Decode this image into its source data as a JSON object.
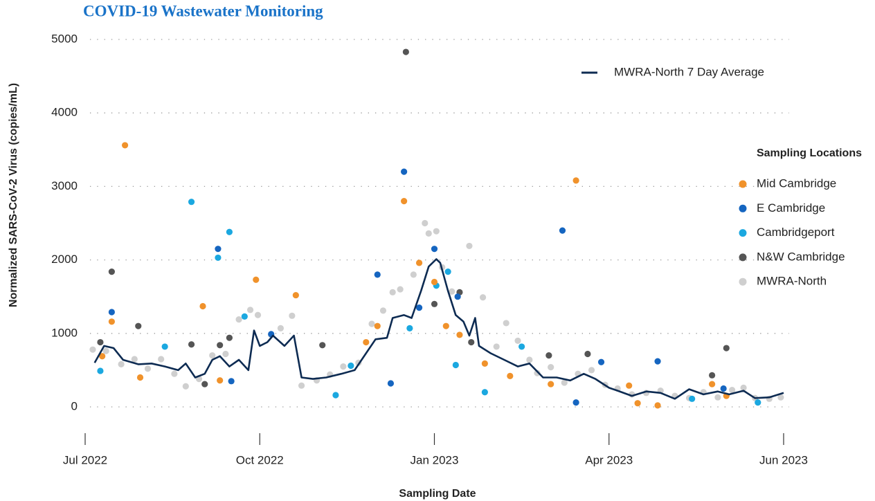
{
  "chart_data": {
    "type": "scatter",
    "title": "COVID-19 Wastewater Monitoring",
    "xlabel": "Sampling Date",
    "ylabel": "Normalized SARS-CoV-2 Virus (copies/mL)",
    "legend_title": "Sampling Locations",
    "ylim": [
      0,
      5000
    ],
    "yticks": [
      0,
      1000,
      2000,
      3000,
      4000,
      5000
    ],
    "xlim": [
      "2022-07-01",
      "2023-06-01"
    ],
    "xticks": [
      {
        "value": "2022-07-01",
        "label": "Jul 2022"
      },
      {
        "value": "2022-10-01",
        "label": "Oct 2022"
      },
      {
        "value": "2023-01-01",
        "label": "Jan 2023"
      },
      {
        "value": "2023-04-01",
        "label": "Apr 2023"
      },
      {
        "value": "2023-06-01",
        "label": "Jun 2023"
      }
    ],
    "grid": true,
    "legend": "right",
    "series": [
      {
        "name": "Mid Cambridge",
        "color": "#f0922b",
        "x": [
          "2022-07-10",
          "2022-07-15",
          "2022-07-22",
          "2022-07-30",
          "2022-09-01",
          "2022-09-10",
          "2022-09-29",
          "2022-10-20",
          "2022-11-26",
          "2022-12-02",
          "2022-12-16",
          "2022-12-24",
          "2023-01-01",
          "2023-01-07",
          "2023-01-14",
          "2023-01-27",
          "2023-02-09",
          "2023-03-02",
          "2023-03-15",
          "2023-04-08",
          "2023-04-11",
          "2023-04-18",
          "2023-05-07",
          "2023-05-12"
        ],
        "values": [
          690,
          1160,
          3560,
          400,
          1370,
          360,
          1730,
          1520,
          880,
          1100,
          2800,
          1960,
          1700,
          1100,
          980,
          590,
          420,
          310,
          3080,
          290,
          50,
          20,
          310,
          150
        ]
      },
      {
        "name": "E Cambridge",
        "color": "#1565c0",
        "x": [
          "2022-07-15",
          "2022-09-09",
          "2022-09-16",
          "2022-10-07",
          "2022-12-02",
          "2022-12-09",
          "2022-12-16",
          "2022-12-24",
          "2023-01-01",
          "2023-01-13",
          "2023-03-08",
          "2023-03-15",
          "2023-03-28",
          "2023-04-18",
          "2023-05-11"
        ],
        "values": [
          1290,
          2150,
          350,
          990,
          1800,
          320,
          3200,
          1350,
          2150,
          1500,
          2400,
          60,
          610,
          620,
          250
        ]
      },
      {
        "name": "Cambridgeport",
        "color": "#1ba8e0",
        "x": [
          "2022-07-09",
          "2022-08-12",
          "2022-08-26",
          "2022-09-09",
          "2022-09-15",
          "2022-09-23",
          "2022-11-10",
          "2022-11-18",
          "2022-12-19",
          "2023-01-02",
          "2023-01-08",
          "2023-01-12",
          "2023-01-27",
          "2023-02-15",
          "2023-04-30",
          "2023-05-23"
        ],
        "values": [
          490,
          820,
          2790,
          2030,
          2380,
          1230,
          160,
          560,
          1070,
          1650,
          1840,
          570,
          200,
          820,
          110,
          60
        ]
      },
      {
        "name": "N&W Cambridge",
        "color": "#555555",
        "x": [
          "2022-07-09",
          "2022-07-15",
          "2022-07-29",
          "2022-08-26",
          "2022-09-02",
          "2022-09-10",
          "2022-09-15",
          "2022-11-03",
          "2022-12-17",
          "2023-01-01",
          "2023-01-14",
          "2023-01-20",
          "2023-03-01",
          "2023-03-21",
          "2023-05-07",
          "2023-05-12"
        ],
        "values": [
          880,
          1840,
          1100,
          850,
          310,
          840,
          940,
          840,
          4830,
          1400,
          1560,
          880,
          700,
          720,
          430,
          800
        ]
      },
      {
        "name": "MWRA-North",
        "color": "#cfcfcf",
        "x": [
          "2022-07-05",
          "2022-07-12",
          "2022-07-20",
          "2022-07-27",
          "2022-08-03",
          "2022-08-10",
          "2022-08-17",
          "2022-08-23",
          "2022-08-30",
          "2022-09-06",
          "2022-09-13",
          "2022-09-20",
          "2022-09-26",
          "2022-09-30",
          "2022-10-07",
          "2022-10-12",
          "2022-10-18",
          "2022-10-23",
          "2022-10-31",
          "2022-11-07",
          "2022-11-14",
          "2022-11-22",
          "2022-11-29",
          "2022-12-05",
          "2022-12-10",
          "2022-12-14",
          "2022-12-21",
          "2022-12-27",
          "2022-12-29",
          "2023-01-02",
          "2023-01-05",
          "2023-01-10",
          "2023-01-19",
          "2023-01-26",
          "2023-02-02",
          "2023-02-07",
          "2023-02-13",
          "2023-02-19",
          "2023-02-23",
          "2023-03-02",
          "2023-03-09",
          "2023-03-16",
          "2023-03-23",
          "2023-03-30",
          "2023-04-04",
          "2023-04-09",
          "2023-04-14",
          "2023-04-19",
          "2023-04-24",
          "2023-04-29",
          "2023-05-04",
          "2023-05-09",
          "2023-05-14",
          "2023-05-18",
          "2023-05-22",
          "2023-05-27",
          "2023-05-31"
        ],
        "values": [
          780,
          760,
          580,
          650,
          520,
          650,
          450,
          280,
          380,
          700,
          720,
          1190,
          1320,
          1250,
          980,
          1070,
          1240,
          290,
          360,
          440,
          550,
          600,
          1130,
          1310,
          1560,
          1600,
          1800,
          2500,
          2360,
          2390,
          1900,
          1570,
          2190,
          1490,
          820,
          1140,
          900,
          640,
          460,
          540,
          330,
          450,
          500,
          300,
          250,
          170,
          190,
          220,
          150,
          120,
          200,
          130,
          230,
          260,
          120,
          110,
          130
        ]
      },
      {
        "name": "MWRA-North 7 Day Average",
        "color": "#0d2b52",
        "type": "line",
        "x": [
          "2022-07-06",
          "2022-07-11",
          "2022-07-16",
          "2022-07-21",
          "2022-07-29",
          "2022-08-05",
          "2022-08-12",
          "2022-08-19",
          "2022-08-23",
          "2022-08-28",
          "2022-09-02",
          "2022-09-06",
          "2022-09-10",
          "2022-09-15",
          "2022-09-20",
          "2022-09-25",
          "2022-09-28",
          "2022-10-01",
          "2022-10-05",
          "2022-10-08",
          "2022-10-14",
          "2022-10-19",
          "2022-10-23",
          "2022-10-29",
          "2022-11-05",
          "2022-11-13",
          "2022-11-20",
          "2022-11-26",
          "2022-12-01",
          "2022-12-07",
          "2022-12-10",
          "2022-12-16",
          "2022-12-20",
          "2022-12-25",
          "2022-12-29",
          "2023-01-02",
          "2023-01-04",
          "2023-01-08",
          "2023-01-12",
          "2023-01-16",
          "2023-01-19",
          "2023-01-22",
          "2023-01-24",
          "2023-01-30",
          "2023-02-06",
          "2023-02-13",
          "2023-02-19",
          "2023-02-26",
          "2023-03-05",
          "2023-03-12",
          "2023-03-19",
          "2023-03-25",
          "2023-04-01",
          "2023-04-04",
          "2023-04-09",
          "2023-04-14",
          "2023-04-19",
          "2023-04-24",
          "2023-04-29",
          "2023-05-04",
          "2023-05-09",
          "2023-05-13",
          "2023-05-18",
          "2023-05-22",
          "2023-05-27",
          "2023-06-01"
        ],
        "values": [
          600,
          830,
          800,
          640,
          580,
          590,
          550,
          500,
          590,
          400,
          450,
          640,
          690,
          550,
          640,
          500,
          1040,
          830,
          880,
          970,
          830,
          970,
          400,
          380,
          400,
          450,
          500,
          730,
          920,
          940,
          1210,
          1250,
          1210,
          1580,
          1910,
          2010,
          1960,
          1580,
          1250,
          1160,
          970,
          1210,
          830,
          730,
          640,
          550,
          590,
          400,
          400,
          360,
          450,
          380,
          260,
          220,
          150,
          210,
          190,
          110,
          240,
          170,
          210,
          170,
          220,
          120,
          130,
          190
        ]
      }
    ]
  }
}
